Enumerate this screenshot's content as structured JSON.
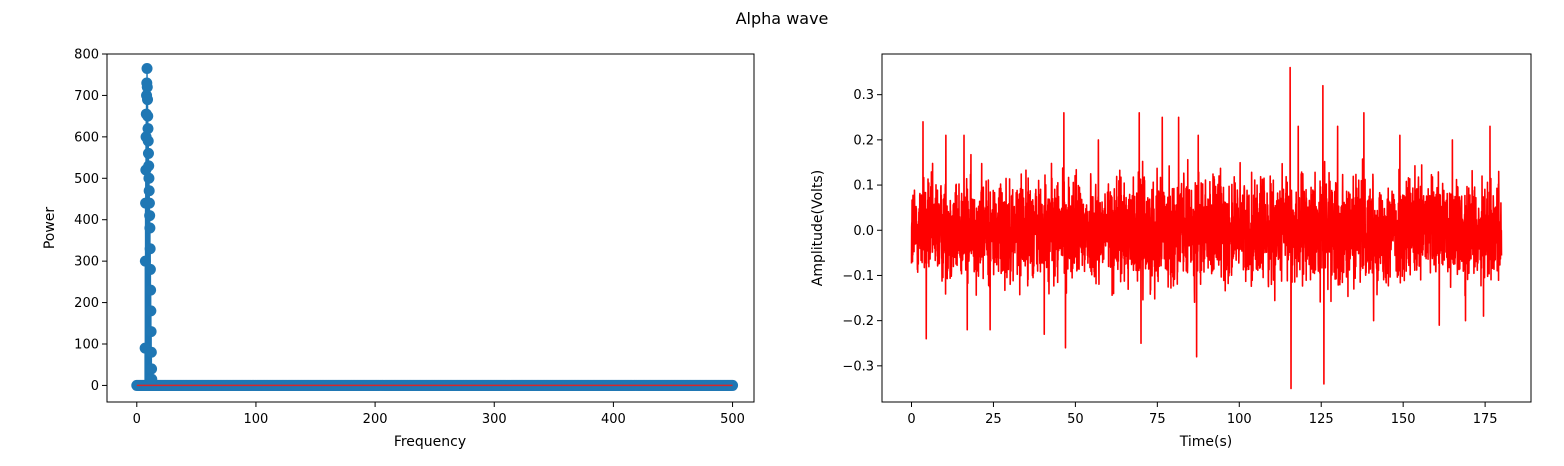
{
  "figure": {
    "title": "Alpha wave"
  },
  "chart_data": [
    {
      "type": "stem",
      "xlabel": "Frequency",
      "ylabel": "Power",
      "xlim": [
        -25,
        518
      ],
      "ylim": [
        -40,
        800
      ],
      "xticks": [
        0,
        100,
        200,
        300,
        400,
        500
      ],
      "yticks": [
        0,
        100,
        200,
        300,
        400,
        500,
        600,
        700,
        800
      ],
      "baseline": 0,
      "colors": {
        "marker": "#1f77b4",
        "stem": "#1f77b4",
        "baseline": "#d62728"
      },
      "x_range": [
        0,
        500
      ],
      "peak_points": [
        {
          "x": 7.0,
          "y": 90
        },
        {
          "x": 7.2,
          "y": 300
        },
        {
          "x": 7.4,
          "y": 440
        },
        {
          "x": 7.6,
          "y": 520
        },
        {
          "x": 7.8,
          "y": 600
        },
        {
          "x": 8.0,
          "y": 655
        },
        {
          "x": 8.2,
          "y": 700
        },
        {
          "x": 8.4,
          "y": 730
        },
        {
          "x": 8.6,
          "y": 765
        },
        {
          "x": 8.8,
          "y": 720
        },
        {
          "x": 9.0,
          "y": 690
        },
        {
          "x": 9.2,
          "y": 650
        },
        {
          "x": 9.4,
          "y": 620
        },
        {
          "x": 9.6,
          "y": 590
        },
        {
          "x": 9.8,
          "y": 560
        },
        {
          "x": 10.0,
          "y": 530
        },
        {
          "x": 10.2,
          "y": 500
        },
        {
          "x": 10.4,
          "y": 470
        },
        {
          "x": 10.6,
          "y": 440
        },
        {
          "x": 10.8,
          "y": 410
        },
        {
          "x": 11.0,
          "y": 380
        },
        {
          "x": 11.2,
          "y": 330
        },
        {
          "x": 11.4,
          "y": 280
        },
        {
          "x": 11.6,
          "y": 230
        },
        {
          "x": 11.8,
          "y": 180
        },
        {
          "x": 12.0,
          "y": 130
        },
        {
          "x": 12.2,
          "y": 80
        },
        {
          "x": 12.4,
          "y": 40
        },
        {
          "x": 12.6,
          "y": 15
        }
      ]
    },
    {
      "type": "line",
      "xlabel": "Time(s)",
      "ylabel": "Amplitude(Volts)",
      "xlim": [
        -9,
        189
      ],
      "ylim": [
        -0.38,
        0.39
      ],
      "xticks": [
        0,
        25,
        50,
        75,
        100,
        125,
        150,
        175
      ],
      "yticks": [
        -0.3,
        -0.2,
        -0.1,
        0.0,
        0.1,
        0.2,
        0.3
      ],
      "ytick_labels": [
        "−0.3",
        "−0.2",
        "−0.1",
        "0.0",
        "0.1",
        "0.2",
        "0.3"
      ],
      "colors": {
        "line": "#ff0000"
      },
      "x_range": [
        0,
        180
      ],
      "typical_amplitude": 0.12,
      "spikes": [
        {
          "x": 3.5,
          "y": 0.24
        },
        {
          "x": 4.5,
          "y": -0.24
        },
        {
          "x": 10.5,
          "y": 0.21
        },
        {
          "x": 16,
          "y": 0.21
        },
        {
          "x": 17,
          "y": -0.22
        },
        {
          "x": 24,
          "y": -0.22
        },
        {
          "x": 40.5,
          "y": -0.23
        },
        {
          "x": 46.5,
          "y": 0.26
        },
        {
          "x": 47,
          "y": -0.26
        },
        {
          "x": 57,
          "y": 0.2
        },
        {
          "x": 69.5,
          "y": 0.26
        },
        {
          "x": 70,
          "y": -0.25
        },
        {
          "x": 76.5,
          "y": 0.25
        },
        {
          "x": 81.5,
          "y": 0.25
        },
        {
          "x": 87,
          "y": -0.28
        },
        {
          "x": 87.5,
          "y": 0.21
        },
        {
          "x": 115.5,
          "y": 0.36
        },
        {
          "x": 115.8,
          "y": -0.35
        },
        {
          "x": 118,
          "y": 0.23
        },
        {
          "x": 125.5,
          "y": 0.32
        },
        {
          "x": 125.8,
          "y": -0.34
        },
        {
          "x": 130,
          "y": 0.23
        },
        {
          "x": 138,
          "y": 0.26
        },
        {
          "x": 141,
          "y": -0.2
        },
        {
          "x": 149,
          "y": 0.21
        },
        {
          "x": 161,
          "y": -0.21
        },
        {
          "x": 165,
          "y": 0.2
        },
        {
          "x": 169,
          "y": -0.2
        },
        {
          "x": 174.5,
          "y": -0.19
        },
        {
          "x": 176.5,
          "y": 0.23
        }
      ]
    }
  ]
}
